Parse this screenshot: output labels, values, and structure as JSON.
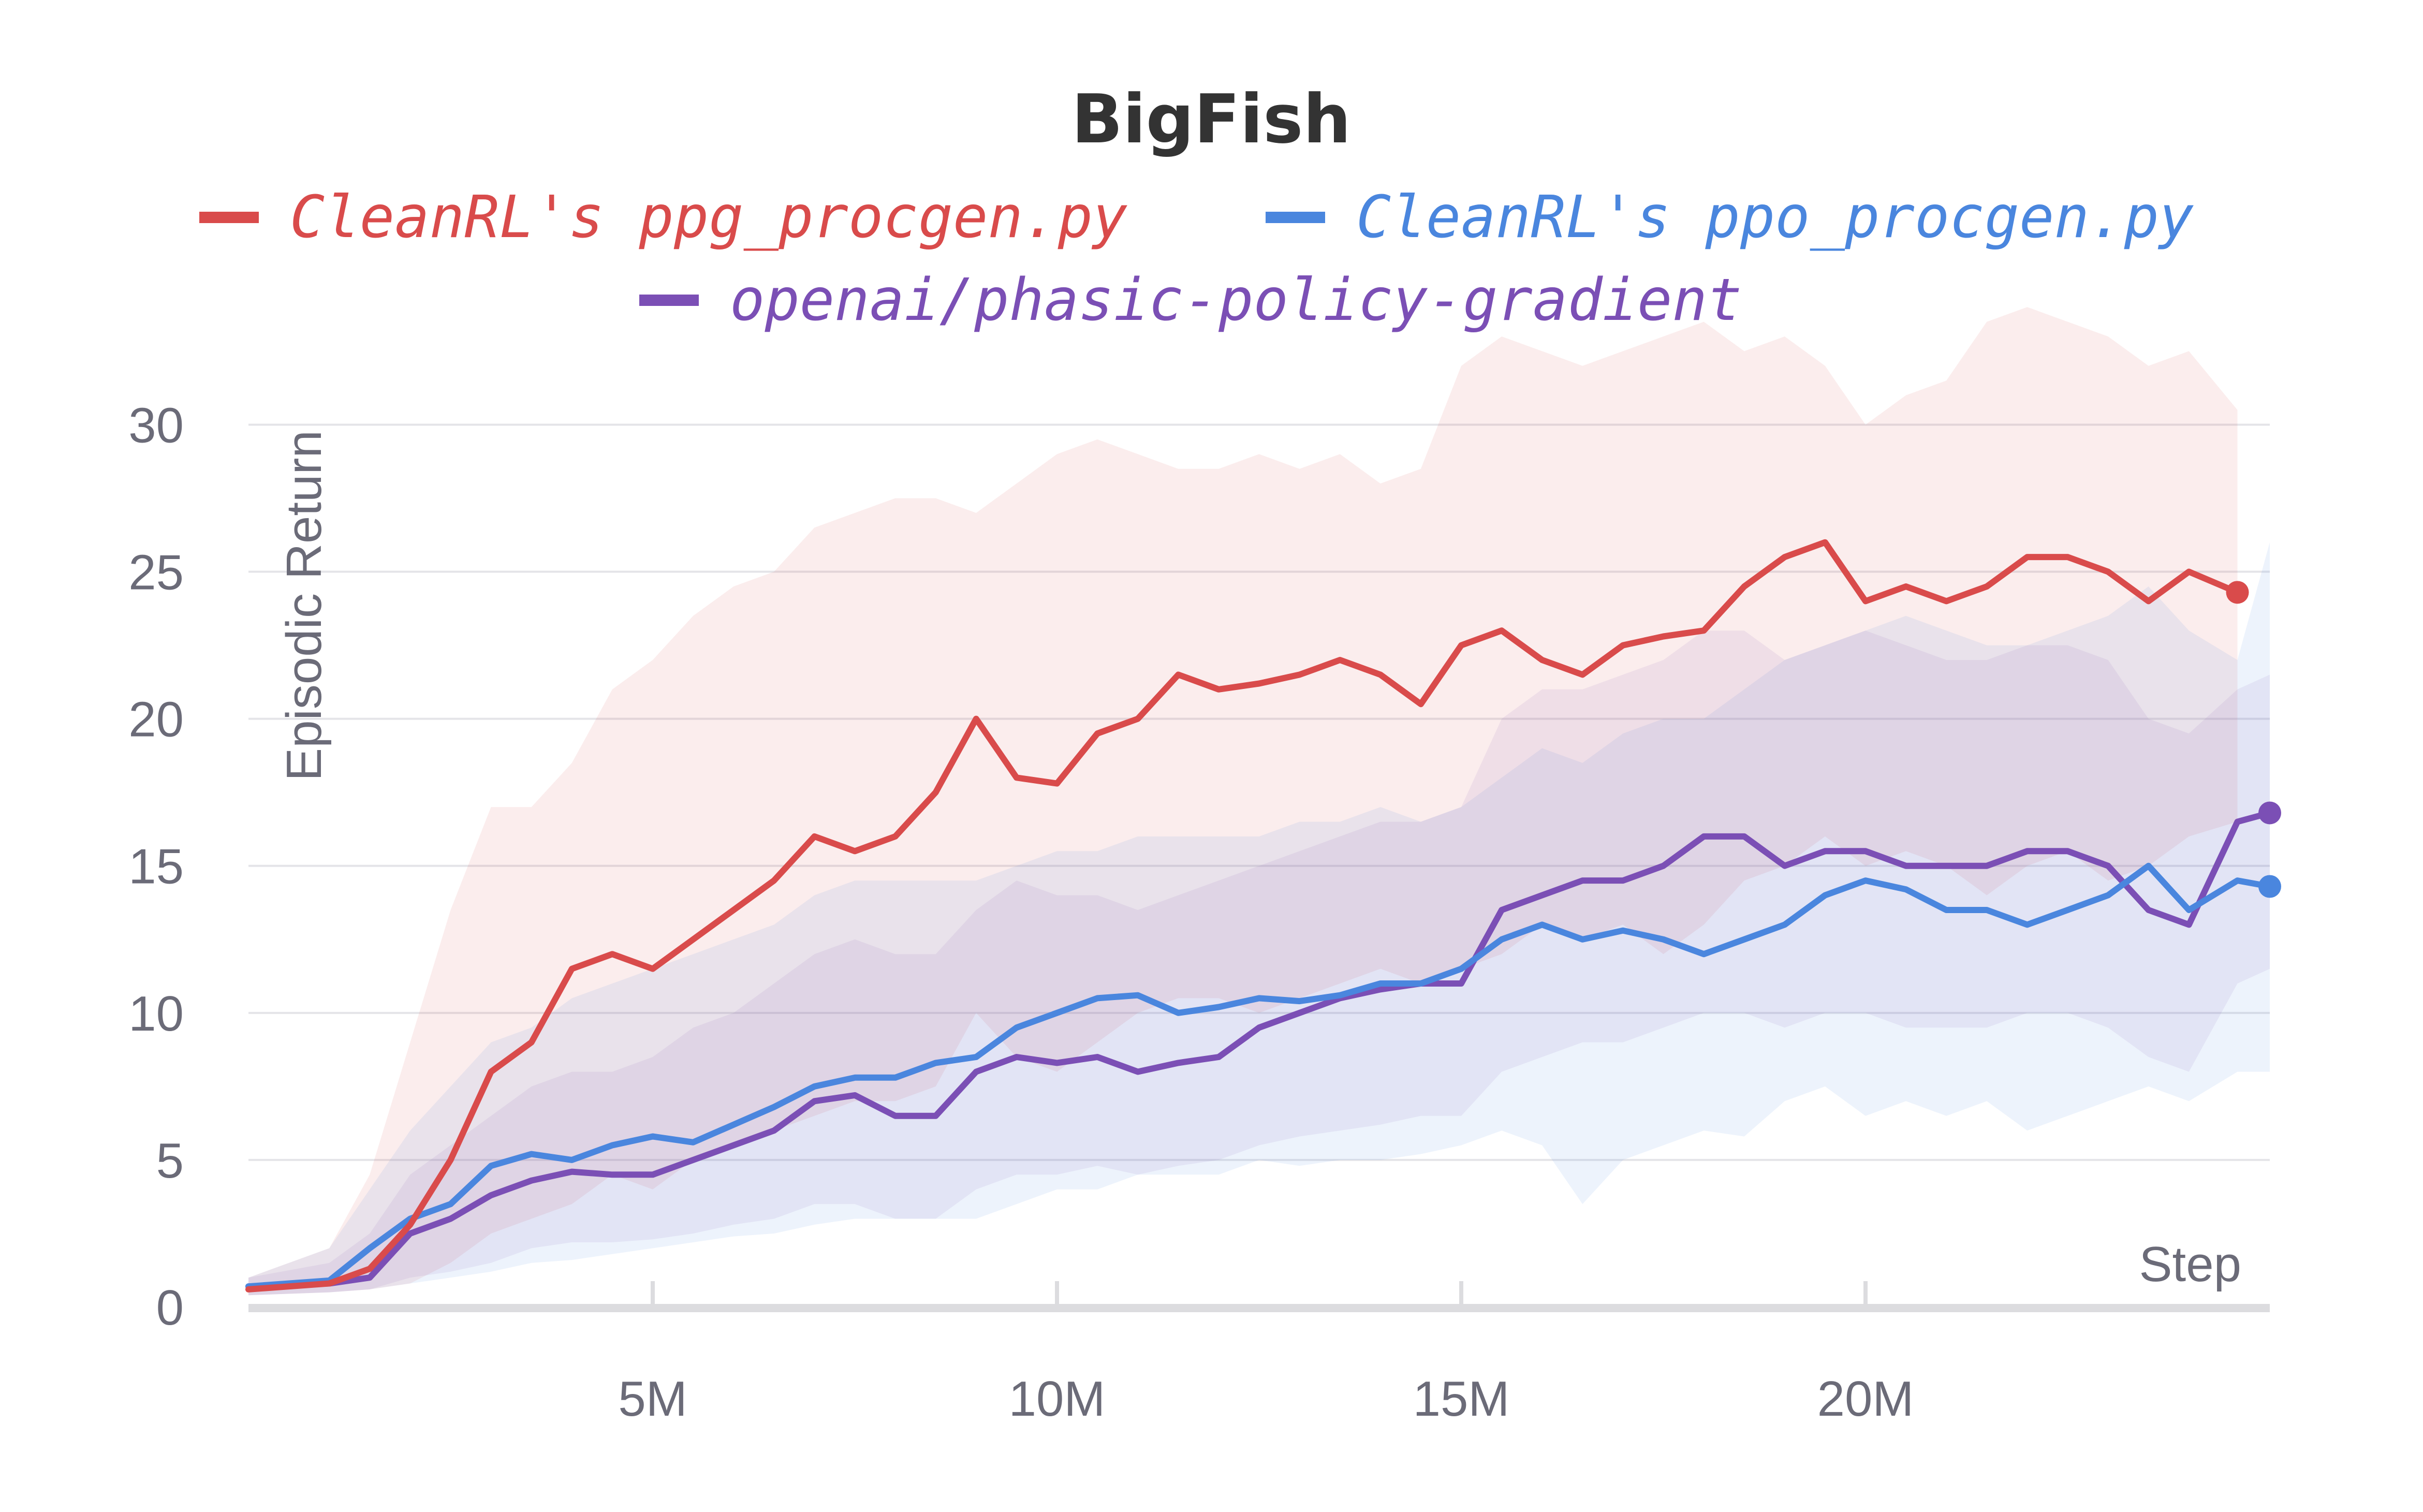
{
  "chart_data": {
    "type": "line",
    "title": "BigFish",
    "xlabel": "Step",
    "ylabel": "Episodic Return",
    "xlim": [
      0,
      25000000
    ],
    "ylim": [
      0,
      33
    ],
    "x_ticks": [
      {
        "value": 5000000,
        "label": "5M"
      },
      {
        "value": 10000000,
        "label": "10M"
      },
      {
        "value": 15000000,
        "label": "15M"
      },
      {
        "value": 20000000,
        "label": "20M"
      }
    ],
    "y_ticks": [
      {
        "value": 0,
        "label": "0"
      },
      {
        "value": 5,
        "label": "5"
      },
      {
        "value": 10,
        "label": "10"
      },
      {
        "value": 15,
        "label": "15"
      },
      {
        "value": 20,
        "label": "20"
      },
      {
        "value": 25,
        "label": "25"
      },
      {
        "value": 30,
        "label": "30"
      }
    ],
    "grid": true,
    "legend_position": "top-center",
    "series": [
      {
        "name": "CleanRL's ppg_procgen.py",
        "color": "#d94b4b",
        "x": [
          0,
          1000000,
          1500000,
          2000000,
          2500000,
          3000000,
          3500000,
          4000000,
          4500000,
          5000000,
          5500000,
          6000000,
          6500000,
          7000000,
          7500000,
          8000000,
          8500000,
          9000000,
          9500000,
          10000000,
          10500000,
          11000000,
          11500000,
          12000000,
          12500000,
          13000000,
          13500000,
          14000000,
          14500000,
          15000000,
          15500000,
          16000000,
          16500000,
          17000000,
          17500000,
          18000000,
          18500000,
          19000000,
          19500000,
          20000000,
          20500000,
          21000000,
          21500000,
          22000000,
          22500000,
          23000000,
          23500000,
          24000000,
          24600000
        ],
        "y": [
          0.6,
          0.8,
          1.3,
          2.8,
          5.0,
          8.0,
          9.0,
          11.5,
          12.0,
          11.5,
          12.5,
          13.5,
          14.5,
          16.0,
          15.5,
          16.0,
          17.5,
          20.0,
          18.0,
          17.8,
          19.5,
          20.0,
          21.5,
          21.0,
          21.2,
          21.5,
          22.0,
          21.5,
          20.5,
          22.5,
          23.0,
          22.0,
          21.5,
          22.5,
          22.8,
          23.0,
          24.5,
          25.5,
          26.0,
          24.0,
          24.5,
          24.0,
          24.5,
          25.5,
          25.5,
          25.0,
          24.0,
          25.0,
          24.3
        ],
        "upper": [
          1.0,
          2.0,
          4.5,
          9.0,
          13.5,
          17.0,
          17.0,
          18.5,
          21.0,
          22.0,
          23.5,
          24.5,
          25.0,
          26.5,
          27.0,
          27.5,
          27.5,
          27.0,
          28.0,
          29.0,
          29.5,
          29.0,
          28.5,
          28.5,
          29.0,
          28.5,
          29.0,
          28.0,
          28.5,
          32.0,
          33.0,
          32.5,
          32.0,
          32.5,
          33.0,
          33.5,
          32.5,
          33.0,
          32.0,
          30.0,
          31.0,
          31.5,
          33.5,
          34.0,
          33.5,
          33.0,
          32.0,
          32.5,
          30.5
        ],
        "lower": [
          0.4,
          0.5,
          0.6,
          0.8,
          1.5,
          2.5,
          3.0,
          3.5,
          4.5,
          4.0,
          5.0,
          5.5,
          6.0,
          6.5,
          7.0,
          7.0,
          7.5,
          10.0,
          8.5,
          8.0,
          9.0,
          10.0,
          10.5,
          10.5,
          10.0,
          10.5,
          11.0,
          11.5,
          11.0,
          11.5,
          12.0,
          13.0,
          12.5,
          13.0,
          12.0,
          13.0,
          14.5,
          15.0,
          16.0,
          15.0,
          15.5,
          15.0,
          14.0,
          15.0,
          15.5,
          14.5,
          15.0,
          16.0,
          16.5
        ]
      },
      {
        "name": "CleanRL's ppo_procgen.py",
        "color": "#4a86de",
        "x": [
          0,
          1000000,
          1500000,
          2000000,
          2500000,
          3000000,
          3500000,
          4000000,
          4500000,
          5000000,
          5500000,
          6000000,
          6500000,
          7000000,
          7500000,
          8000000,
          8500000,
          9000000,
          9500000,
          10000000,
          10500000,
          11000000,
          11500000,
          12000000,
          12500000,
          13000000,
          13500000,
          14000000,
          14500000,
          15000000,
          15500000,
          16000000,
          16500000,
          17000000,
          17500000,
          18000000,
          18500000,
          19000000,
          19500000,
          20000000,
          20500000,
          21000000,
          21500000,
          22000000,
          22500000,
          23000000,
          23500000,
          24000000,
          24600000,
          25000000
        ],
        "y": [
          0.7,
          0.9,
          2.0,
          3.0,
          3.5,
          4.8,
          5.2,
          5.0,
          5.5,
          5.8,
          5.6,
          6.2,
          6.8,
          7.5,
          7.8,
          7.8,
          8.3,
          8.5,
          9.5,
          10.0,
          10.5,
          10.6,
          10.0,
          10.2,
          10.5,
          10.4,
          10.6,
          11.0,
          11.0,
          11.5,
          12.5,
          13.0,
          12.5,
          12.8,
          12.5,
          12.0,
          12.5,
          13.0,
          14.0,
          14.5,
          14.2,
          13.5,
          13.5,
          13.0,
          13.5,
          14.0,
          15.0,
          13.5,
          14.5,
          14.3
        ],
        "upper": [
          1.0,
          2.0,
          4.0,
          6.0,
          7.5,
          9.0,
          9.5,
          10.5,
          11.0,
          11.5,
          12.0,
          12.5,
          13.0,
          14.0,
          14.5,
          14.5,
          14.5,
          14.5,
          15.0,
          15.5,
          15.5,
          16.0,
          16.0,
          16.0,
          16.0,
          16.5,
          16.5,
          17.0,
          16.5,
          17.0,
          18.0,
          19.0,
          18.5,
          19.5,
          20.0,
          20.0,
          21.0,
          22.0,
          22.5,
          23.0,
          23.5,
          23.0,
          22.5,
          22.5,
          23.0,
          23.5,
          24.5,
          23.0,
          22.0,
          26.0
        ],
        "lower": [
          0.4,
          0.5,
          0.6,
          0.8,
          1.0,
          1.2,
          1.5,
          1.6,
          1.8,
          2.0,
          2.2,
          2.4,
          2.5,
          2.8,
          3.0,
          3.0,
          3.0,
          3.0,
          3.5,
          4.0,
          4.0,
          4.5,
          4.5,
          4.5,
          5.0,
          4.8,
          5.0,
          5.0,
          5.2,
          5.5,
          6.0,
          5.5,
          3.5,
          5.0,
          5.5,
          6.0,
          5.8,
          7.0,
          7.5,
          6.5,
          7.0,
          6.5,
          7.0,
          6.0,
          6.5,
          7.0,
          7.5,
          7.0,
          8.0,
          8.0
        ]
      },
      {
        "name": "openai/phasic-policy-gradient",
        "color": "#7b4fb5",
        "x": [
          0,
          1000000,
          1500000,
          2000000,
          2500000,
          3000000,
          3500000,
          4000000,
          4500000,
          5000000,
          5500000,
          6000000,
          6500000,
          7000000,
          7500000,
          8000000,
          8500000,
          9000000,
          9500000,
          10000000,
          10500000,
          11000000,
          11500000,
          12000000,
          12500000,
          13000000,
          13500000,
          14000000,
          14500000,
          15000000,
          15500000,
          16000000,
          16500000,
          17000000,
          17500000,
          18000000,
          18500000,
          19000000,
          19500000,
          20000000,
          20500000,
          21000000,
          21500000,
          22000000,
          22500000,
          23000000,
          23500000,
          24000000,
          24600000,
          25000000
        ],
        "y": [
          0.7,
          0.8,
          1.0,
          2.5,
          3.0,
          3.8,
          4.3,
          4.6,
          4.5,
          4.5,
          5.0,
          5.5,
          6.0,
          7.0,
          7.2,
          6.5,
          6.5,
          8.0,
          8.5,
          8.3,
          8.5,
          8.0,
          8.3,
          8.5,
          9.5,
          10.0,
          10.5,
          10.8,
          11.0,
          11.0,
          13.5,
          14.0,
          14.5,
          14.5,
          15.0,
          16.0,
          16.0,
          15.0,
          15.5,
          15.5,
          15.0,
          15.0,
          15.0,
          15.5,
          15.5,
          15.0,
          13.5,
          13.0,
          16.5,
          16.8
        ],
        "upper": [
          1.0,
          1.5,
          2.5,
          4.5,
          5.5,
          6.5,
          7.5,
          8.0,
          8.0,
          8.5,
          9.5,
          10.0,
          11.0,
          12.0,
          12.5,
          12.0,
          12.0,
          13.5,
          14.5,
          14.0,
          14.0,
          13.5,
          14.0,
          14.5,
          15.0,
          15.5,
          16.0,
          16.5,
          16.5,
          17.0,
          20.0,
          21.0,
          21.0,
          21.5,
          22.0,
          23.0,
          23.0,
          22.0,
          22.5,
          23.0,
          22.5,
          22.0,
          22.0,
          22.5,
          22.5,
          22.0,
          20.0,
          19.5,
          21.0,
          21.5
        ],
        "lower": [
          0.4,
          0.5,
          0.6,
          1.0,
          1.2,
          1.5,
          2.0,
          2.2,
          2.2,
          2.3,
          2.5,
          2.8,
          3.0,
          3.5,
          3.5,
          3.0,
          3.0,
          4.0,
          4.5,
          4.5,
          4.8,
          4.5,
          4.8,
          5.0,
          5.5,
          5.8,
          6.0,
          6.2,
          6.5,
          6.5,
          8.0,
          8.5,
          9.0,
          9.0,
          9.5,
          10.0,
          10.0,
          9.5,
          10.0,
          10.0,
          9.5,
          9.5,
          9.5,
          10.0,
          10.0,
          9.5,
          8.5,
          8.0,
          11.0,
          11.5
        ]
      }
    ]
  }
}
